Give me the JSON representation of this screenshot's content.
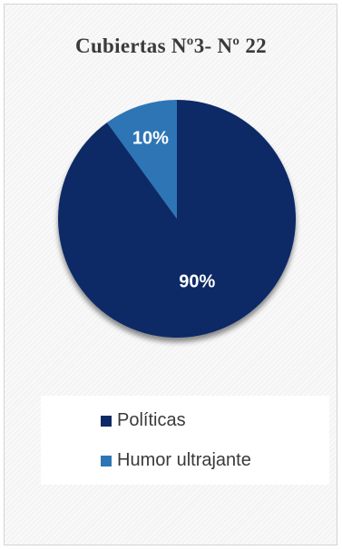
{
  "chart_data": {
    "type": "pie",
    "title": "Cubiertas Nº3- Nº 22",
    "slices": [
      {
        "name": "Políticas",
        "value": 90,
        "label": "90%",
        "color": "#0d2a66"
      },
      {
        "name": "Humor ultrajante",
        "value": 10,
        "label": "10%",
        "color": "#2e75b6"
      }
    ],
    "legend_position": "bottom"
  }
}
